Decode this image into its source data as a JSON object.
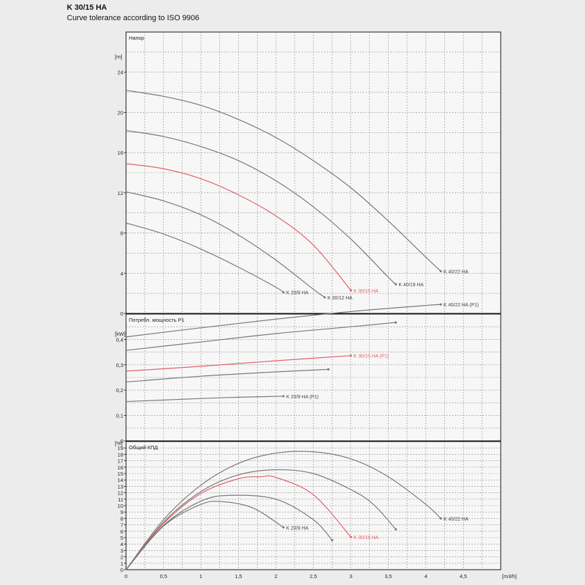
{
  "header": {
    "title": "K 30/15 HA",
    "subtitle": "Curve tolerance according to ISO 9906"
  },
  "colors": {
    "highlight": "#e0606a",
    "curve": "#777777",
    "grid": "#888888",
    "background": "#ececec"
  },
  "chart_data": [
    {
      "type": "line",
      "panel": "head",
      "title": "Напор",
      "ylabel": "[m]",
      "xlabel": "[m3/h]",
      "xlim": [
        0,
        5
      ],
      "ylim": [
        0,
        28
      ],
      "x_ticks": [
        0,
        0.5,
        1,
        1.5,
        2,
        2.5,
        3,
        3.5,
        4,
        4.5
      ],
      "y_ticks": [
        0,
        4,
        8,
        12,
        16,
        20,
        24
      ],
      "y_tick_labels": [
        "0",
        "4",
        "8",
        "12",
        "16",
        "20",
        "24"
      ],
      "grid": true,
      "series": [
        {
          "name": "K 40/22 HA",
          "highlight": false,
          "points": [
            [
              0,
              22.2
            ],
            [
              0.5,
              21.6
            ],
            [
              1,
              20.7
            ],
            [
              1.5,
              19.3
            ],
            [
              2,
              17.5
            ],
            [
              2.5,
              15.2
            ],
            [
              3,
              12.5
            ],
            [
              3.5,
              9.2
            ],
            [
              4,
              5.6
            ],
            [
              4.2,
              4.2
            ]
          ]
        },
        {
          "name": "K 40/19 HA",
          "highlight": false,
          "points": [
            [
              0,
              18.2
            ],
            [
              0.5,
              17.6
            ],
            [
              1,
              16.6
            ],
            [
              1.5,
              15.2
            ],
            [
              2,
              13.2
            ],
            [
              2.5,
              10.6
            ],
            [
              3,
              7.4
            ],
            [
              3.5,
              3.6
            ],
            [
              3.6,
              2.9
            ]
          ]
        },
        {
          "name": "K 30/15 HA",
          "highlight": true,
          "points": [
            [
              0,
              14.9
            ],
            [
              0.5,
              14.4
            ],
            [
              1,
              13.4
            ],
            [
              1.5,
              11.8
            ],
            [
              2,
              9.7
            ],
            [
              2.5,
              6.8
            ],
            [
              3,
              2.3
            ]
          ]
        },
        {
          "name": "K 30/12 HA",
          "highlight": false,
          "points": [
            [
              0,
              12.1
            ],
            [
              0.5,
              11.2
            ],
            [
              1,
              9.8
            ],
            [
              1.5,
              7.8
            ],
            [
              2,
              5.3
            ],
            [
              2.5,
              2.4
            ],
            [
              2.65,
              1.6
            ]
          ]
        },
        {
          "name": "K 20/9 HA",
          "highlight": false,
          "points": [
            [
              0,
              9.0
            ],
            [
              0.5,
              7.9
            ],
            [
              1,
              6.4
            ],
            [
              1.5,
              4.6
            ],
            [
              2,
              2.6
            ],
            [
              2.1,
              2.1
            ]
          ]
        }
      ]
    },
    {
      "type": "line",
      "panel": "power",
      "title": "Потребл. мощность P1",
      "ylabel": "[kW]",
      "xlim": [
        0,
        5
      ],
      "ylim": [
        0,
        0.5
      ],
      "y_ticks": [
        0,
        0.1,
        0.2,
        0.3,
        0.4
      ],
      "y_tick_labels": [
        "0",
        "0,1",
        "0,2",
        "0,3",
        "0,4"
      ],
      "grid": true,
      "series": [
        {
          "name": "K 40/22 HA (P1)",
          "highlight": false,
          "points": [
            [
              0,
              0.41
            ],
            [
              1,
              0.446
            ],
            [
              2,
              0.48
            ],
            [
              3,
              0.51
            ],
            [
              4,
              0.534
            ],
            [
              4.2,
              0.538
            ]
          ]
        },
        {
          "name": "",
          "highlight": false,
          "points": [
            [
              0,
              0.357
            ],
            [
              1,
              0.39
            ],
            [
              2,
              0.423
            ],
            [
              3,
              0.45
            ],
            [
              3.6,
              0.467
            ]
          ]
        },
        {
          "name": "K 30/15 HA (P1)",
          "highlight": true,
          "points": [
            [
              0,
              0.275
            ],
            [
              1,
              0.294
            ],
            [
              2,
              0.316
            ],
            [
              3,
              0.336
            ]
          ]
        },
        {
          "name": "",
          "highlight": false,
          "points": [
            [
              0,
              0.232
            ],
            [
              1,
              0.255
            ],
            [
              2,
              0.272
            ],
            [
              2.7,
              0.282
            ]
          ]
        },
        {
          "name": "K 20/9 HA (P1)",
          "highlight": false,
          "points": [
            [
              0,
              0.155
            ],
            [
              1,
              0.167
            ],
            [
              1.5,
              0.172
            ],
            [
              2.1,
              0.176
            ]
          ]
        }
      ]
    },
    {
      "type": "line",
      "panel": "efficiency",
      "title": "Общий КПД",
      "ylabel": "[%]",
      "xlabel": "[m3/h]",
      "xlim": [
        0,
        5
      ],
      "ylim": [
        0,
        20
      ],
      "x_ticks": [
        0,
        0.5,
        1,
        1.5,
        2,
        2.5,
        3,
        3.5,
        4,
        4.5
      ],
      "x_tick_labels": [
        "0",
        "0,5",
        "1",
        "1,5",
        "2",
        "2,5",
        "3",
        "3,5",
        "4",
        "4,5"
      ],
      "y_ticks": [
        0,
        1,
        2,
        3,
        4,
        5,
        6,
        7,
        8,
        9,
        10,
        11,
        12,
        13,
        14,
        15,
        16,
        17,
        18,
        19
      ],
      "y_tick_labels": [
        "0",
        "1",
        "2",
        "3",
        "4",
        "5",
        "6",
        "7",
        "8",
        "9",
        "10",
        "11",
        "12",
        "13",
        "14",
        "15",
        "16",
        "17",
        "18",
        "19"
      ],
      "grid": true,
      "series": [
        {
          "name": "K 40/22 HA",
          "highlight": false,
          "points": [
            [
              0,
              0
            ],
            [
              0.5,
              7.8
            ],
            [
              1,
              13.2
            ],
            [
              1.5,
              16.6
            ],
            [
              2,
              18.2
            ],
            [
              2.5,
              18.4
            ],
            [
              3,
              17.3
            ],
            [
              3.5,
              14.5
            ],
            [
              4,
              10.2
            ],
            [
              4.2,
              8.0
            ]
          ]
        },
        {
          "name": "",
          "highlight": false,
          "points": [
            [
              0,
              0
            ],
            [
              0.5,
              7.4
            ],
            [
              1,
              12.2
            ],
            [
              1.5,
              14.8
            ],
            [
              2,
              15.6
            ],
            [
              2.5,
              15.0
            ],
            [
              3,
              12.5
            ],
            [
              3.3,
              10.2
            ],
            [
              3.6,
              6.3
            ]
          ]
        },
        {
          "name": "K 30/15 HA",
          "highlight": true,
          "points": [
            [
              0,
              0
            ],
            [
              0.5,
              7.2
            ],
            [
              1,
              11.9
            ],
            [
              1.5,
              14.2
            ],
            [
              1.8,
              14.5
            ],
            [
              2,
              14.4
            ],
            [
              2.5,
              11.7
            ],
            [
              3,
              5.1
            ]
          ]
        },
        {
          "name": "",
          "highlight": false,
          "points": [
            [
              0,
              0
            ],
            [
              0.5,
              6.9
            ],
            [
              1,
              10.7
            ],
            [
              1.4,
              11.6
            ],
            [
              2,
              11.0
            ],
            [
              2.5,
              7.8
            ],
            [
              2.75,
              4.6
            ]
          ]
        },
        {
          "name": "K 20/9 HA",
          "highlight": false,
          "points": [
            [
              0,
              0
            ],
            [
              0.5,
              6.8
            ],
            [
              1,
              10.2
            ],
            [
              1.3,
              10.6
            ],
            [
              1.7,
              9.6
            ],
            [
              2.1,
              6.6
            ]
          ]
        }
      ]
    }
  ]
}
